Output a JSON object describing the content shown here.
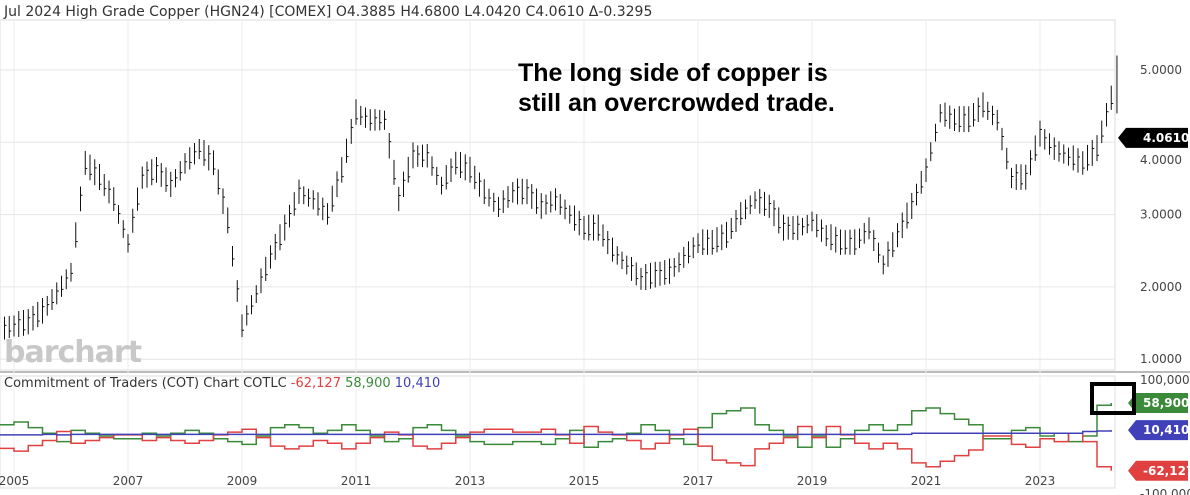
{
  "header": {
    "title": "Jul 2024 High Grade Copper (HGN24) [COMEX]",
    "open": "O4.3885",
    "high": "H4.6800",
    "low": "L4.0420",
    "close": "C4.0610",
    "change": "Δ-0.3295"
  },
  "annotation": {
    "line1": "The long side of copper is",
    "line2": "still an overcrowded trade."
  },
  "watermark": "barchart",
  "cot_header": {
    "title": "Commitment of Traders (COT) Chart COTLC",
    "red": "-62,127",
    "green": "58,900",
    "blue": "10,410"
  },
  "colors": {
    "red": "#e04040",
    "green": "#3a8a3a",
    "blue": "#4040b8",
    "last_price_bg": "#000000"
  },
  "chart_data": [
    {
      "type": "bar",
      "title": "Jul 2024 High Grade Copper (HGN24) [COMEX]",
      "ylim": [
        0.8,
        5.4
      ],
      "yticks": [
        "1.0000",
        "2.0000",
        "3.0000",
        "4.0000",
        "5.0000"
      ],
      "ytick_values": [
        1,
        2,
        3,
        4,
        5
      ],
      "last_price": "4.0610",
      "start": 2004.75,
      "step_years": 0.25,
      "close": [
        1.4,
        1.45,
        1.5,
        1.65,
        1.9,
        2.2,
        3.7,
        3.5,
        3.2,
        2.6,
        3.5,
        3.6,
        3.4,
        3.7,
        3.9,
        3.7,
        2.9,
        1.45,
        1.9,
        2.4,
        2.8,
        3.3,
        3.2,
        3.0,
        3.6,
        4.4,
        4.3,
        4.3,
        3.2,
        3.8,
        3.8,
        3.4,
        3.7,
        3.6,
        3.3,
        3.1,
        3.3,
        3.3,
        3.1,
        3.2,
        3.0,
        2.8,
        2.8,
        2.5,
        2.3,
        2.1,
        2.15,
        2.2,
        2.4,
        2.6,
        2.6,
        2.7,
        3.0,
        3.2,
        3.1,
        2.8,
        2.8,
        2.9,
        2.7,
        2.6,
        2.6,
        2.8,
        2.3,
        2.7,
        3.1,
        3.6,
        4.4,
        4.3,
        4.3,
        4.5,
        4.3,
        3.5,
        3.5,
        4.1,
        3.9,
        3.8,
        3.7,
        3.9,
        4.6,
        4.06
      ],
      "peak_high": 5.2
    },
    {
      "type": "line",
      "title": "Commitment of Traders (COT) Chart COTLC",
      "ylim": [
        -100000,
        100000
      ],
      "yticks": [
        "100,000",
        "-100,000"
      ],
      "start": 2004.75,
      "step_years": 0.25,
      "xticks": [
        "2005",
        "2007",
        "2009",
        "2011",
        "2013",
        "2015",
        "2017",
        "2019",
        "2021",
        "2023"
      ],
      "xtick_values": [
        2005,
        2007,
        2009,
        2011,
        2013,
        2015,
        2017,
        2019,
        2021,
        2023
      ],
      "series": [
        {
          "color": "green",
          "last": "58,900",
          "values": [
            20000,
            25000,
            15000,
            5000,
            -10000,
            10000,
            5000,
            0,
            -5000,
            -5000,
            5000,
            0,
            5000,
            10000,
            5000,
            -5000,
            -10000,
            -15000,
            0,
            15000,
            20000,
            15000,
            5000,
            10000,
            20000,
            10000,
            0,
            -10000,
            -5000,
            15000,
            20000,
            10000,
            0,
            -10000,
            -15000,
            -15000,
            -10000,
            -10000,
            -15000,
            -5000,
            10000,
            -20000,
            -10000,
            -5000,
            5000,
            20000,
            10000,
            -5000,
            -15000,
            15000,
            40000,
            45000,
            50000,
            20000,
            10000,
            0,
            -20000,
            0,
            -20000,
            -5000,
            10000,
            20000,
            10000,
            20000,
            45000,
            50000,
            40000,
            30000,
            20000,
            -5000,
            -5000,
            10000,
            15000,
            0,
            5000,
            -10000,
            0,
            55000,
            58900
          ]
        },
        {
          "color": "red",
          "last": "-62,127",
          "values": [
            -22000,
            -27000,
            -17000,
            -8000,
            8000,
            -13000,
            -8000,
            -3000,
            2000,
            2000,
            -8000,
            -3000,
            -8000,
            -13000,
            -8000,
            2000,
            7000,
            12000,
            -3000,
            -18000,
            -23000,
            -18000,
            -8000,
            -13000,
            -23000,
            -13000,
            -3000,
            7000,
            2000,
            -18000,
            -23000,
            -13000,
            -3000,
            7000,
            12000,
            12000,
            7000,
            7000,
            12000,
            2000,
            -13000,
            17000,
            7000,
            2000,
            -8000,
            -23000,
            -13000,
            2000,
            12000,
            -18000,
            -43000,
            -48000,
            -53000,
            -23000,
            -13000,
            -3000,
            17000,
            -3000,
            17000,
            2000,
            -13000,
            -23000,
            -13000,
            -23000,
            -48000,
            -55000,
            -45000,
            -35000,
            -25000,
            0,
            0,
            -15000,
            -20000,
            -5000,
            -10000,
            5000,
            -10000,
            -55000,
            -62127
          ]
        },
        {
          "color": "blue",
          "last": "10,410",
          "values": [
            2000,
            2000,
            2000,
            3000,
            2000,
            3000,
            3000,
            3000,
            3000,
            3000,
            3000,
            3000,
            3000,
            3000,
            3000,
            3000,
            3000,
            3000,
            3000,
            3000,
            3000,
            3000,
            3000,
            3000,
            3000,
            3000,
            3000,
            3000,
            3000,
            3000,
            3000,
            3000,
            3000,
            3000,
            3000,
            3000,
            3000,
            3000,
            3000,
            3000,
            3000,
            3000,
            3000,
            3000,
            3000,
            3000,
            3000,
            3000,
            3000,
            3000,
            3000,
            3000,
            3000,
            3000,
            3000,
            3000,
            3000,
            3000,
            3000,
            3000,
            3000,
            3000,
            3000,
            3000,
            5000,
            5000,
            5000,
            5000,
            5000,
            5000,
            5000,
            5000,
            5000,
            5000,
            5000,
            5000,
            8000,
            9000,
            10410
          ]
        }
      ]
    }
  ]
}
